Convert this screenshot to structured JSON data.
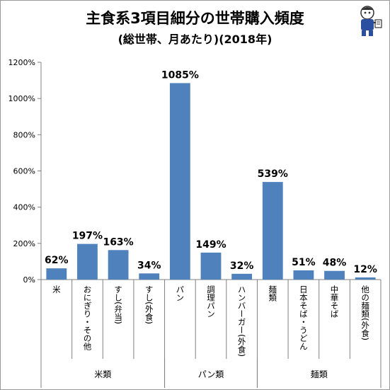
{
  "chart_data": {
    "type": "bar",
    "title": "主食系3項目細分の世帯購入頻度",
    "subtitle": "(総世帯、月あたり)(2018年)",
    "categories": [
      "米",
      "おにぎり・その他",
      "すし(弁当)",
      "すし(外食)",
      "パン",
      "調理パン",
      "ハンバーガー(外食)",
      "麺類",
      "日本そば・うどん",
      "中華そば",
      "他の麺類(外食)"
    ],
    "values": [
      62,
      197,
      163,
      34,
      1085,
      149,
      32,
      539,
      51,
      48,
      12
    ],
    "value_labels": [
      "62%",
      "197%",
      "163%",
      "34%",
      "1085%",
      "149%",
      "32%",
      "539%",
      "51%",
      "48%",
      "12%"
    ],
    "groups": [
      {
        "label": "米類",
        "start": 0,
        "end": 3
      },
      {
        "label": "パン類",
        "start": 4,
        "end": 6
      },
      {
        "label": "麺類",
        "start": 7,
        "end": 10
      }
    ],
    "y_ticks": [
      0,
      200,
      400,
      600,
      800,
      1000,
      1200
    ],
    "y_tick_labels": [
      "0%",
      "200%",
      "400%",
      "600%",
      "800%",
      "1000%",
      "1200%"
    ],
    "ylim": [
      0,
      1200
    ],
    "bar_color": "#4f81bd",
    "grid": false,
    "legend": "none"
  }
}
